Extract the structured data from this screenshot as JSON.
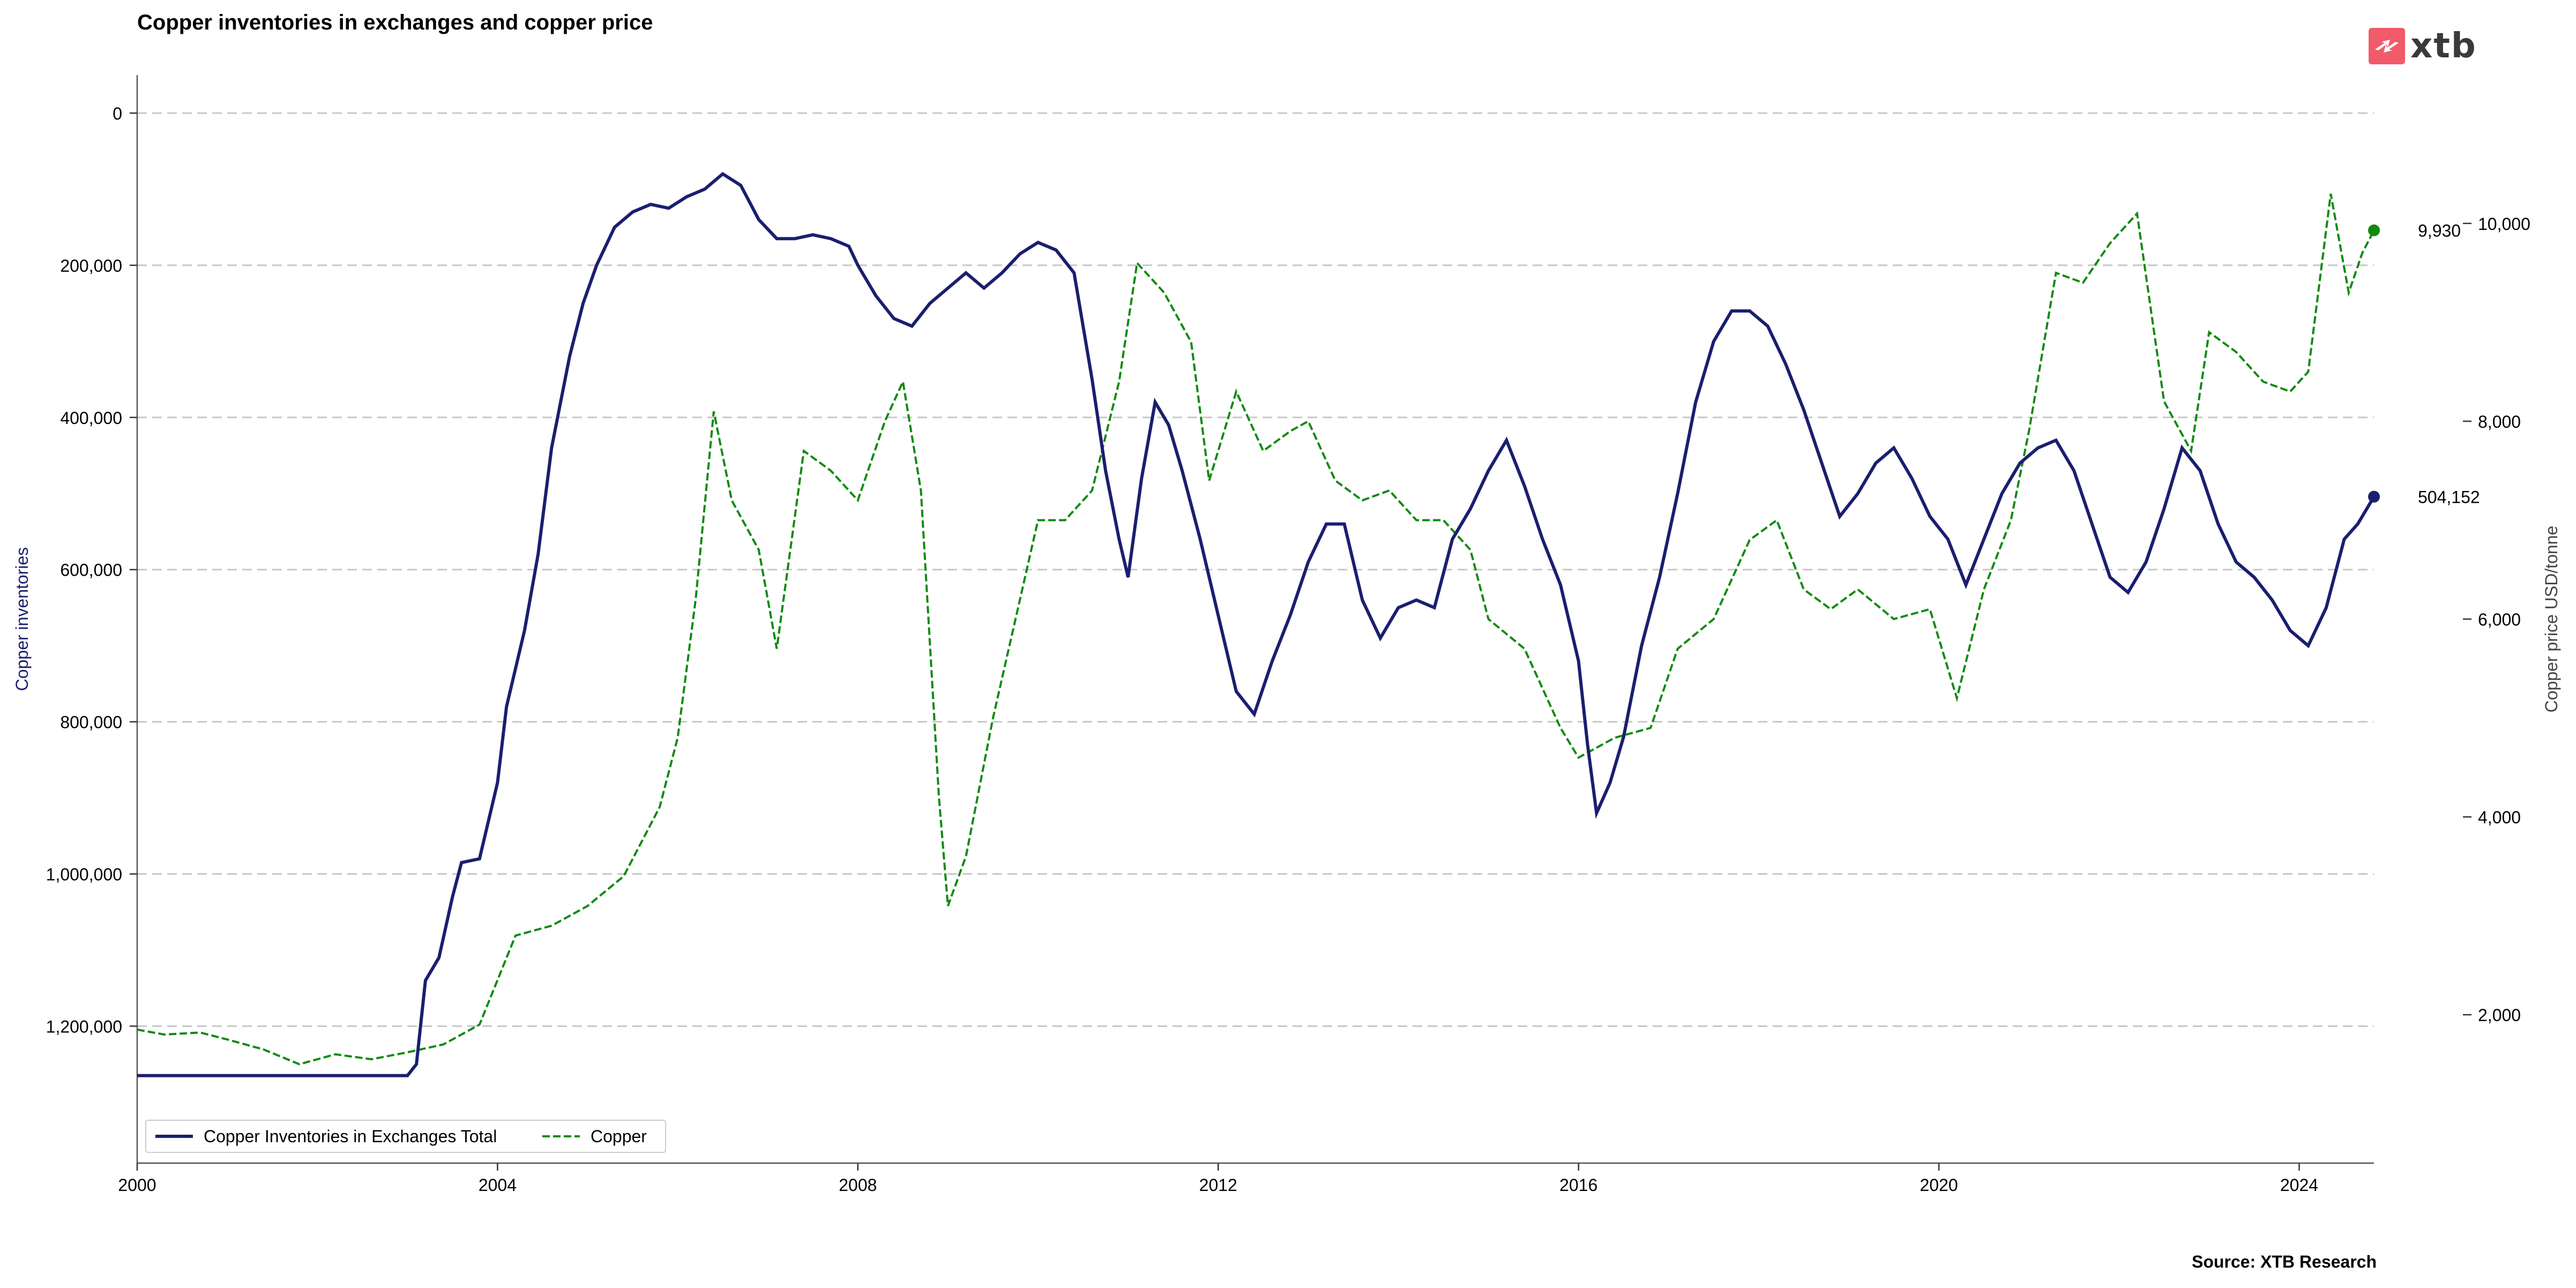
{
  "header": {
    "title": "Copper inventories in exchanges and copper price",
    "source": "Source: XTB Research",
    "logo_text": "xtb",
    "logo_icon": "xtb-logo-icon",
    "logo_color": "#f05a6a"
  },
  "chart_data": {
    "type": "line",
    "title": "Copper inventories in exchanges and copper price",
    "xlabel": "",
    "y_left_label": "Copper inventories",
    "y_right_label": "Copper price USD/tonne",
    "y_left_inverted": true,
    "y_left_range": [
      1380000,
      -50000
    ],
    "y_right_range": [
      500,
      11500
    ],
    "x_range": [
      2000.0,
      2024.83
    ],
    "x_ticks": [
      {
        "value": 2000,
        "label": "2000"
      },
      {
        "value": 2004,
        "label": "2004"
      },
      {
        "value": 2008,
        "label": "2008"
      },
      {
        "value": 2012,
        "label": "2012"
      },
      {
        "value": 2016,
        "label": "2016"
      },
      {
        "value": 2020,
        "label": "2020"
      },
      {
        "value": 2024,
        "label": "2024"
      }
    ],
    "y_left_ticks": [
      {
        "value": 0,
        "label": "0"
      },
      {
        "value": 200000,
        "label": "200,000"
      },
      {
        "value": 400000,
        "label": "400,000"
      },
      {
        "value": 600000,
        "label": "600,000"
      },
      {
        "value": 800000,
        "label": "800,000"
      },
      {
        "value": 1000000,
        "label": "1,000,000"
      },
      {
        "value": 1200000,
        "label": "1,200,000"
      }
    ],
    "y_right_ticks": [
      {
        "value": 2000,
        "label": "2,000"
      },
      {
        "value": 4000,
        "label": "4,000"
      },
      {
        "value": 6000,
        "label": "6,000"
      },
      {
        "value": 8000,
        "label": "8,000"
      },
      {
        "value": 10000,
        "label": "10,000"
      }
    ],
    "grid": "horizontal-dashed",
    "legend_position": "bottom-left",
    "series": [
      {
        "name": "Copper Inventories in Exchanges Total",
        "axis": "left",
        "color": "#1a1f6e",
        "style": "solid",
        "last_value_label": "504,152",
        "last_value": 504152,
        "points": [
          [
            2000.0,
            1265000
          ],
          [
            2003.0,
            1265000
          ],
          [
            2003.1,
            1250000
          ],
          [
            2003.2,
            1140000
          ],
          [
            2003.35,
            1110000
          ],
          [
            2003.5,
            1030000
          ],
          [
            2003.6,
            985000
          ],
          [
            2003.8,
            980000
          ],
          [
            2003.9,
            930000
          ],
          [
            2004.0,
            880000
          ],
          [
            2004.1,
            780000
          ],
          [
            2004.3,
            680000
          ],
          [
            2004.45,
            580000
          ],
          [
            2004.6,
            440000
          ],
          [
            2004.8,
            320000
          ],
          [
            2004.95,
            250000
          ],
          [
            2005.1,
            200000
          ],
          [
            2005.3,
            150000
          ],
          [
            2005.5,
            130000
          ],
          [
            2005.7,
            120000
          ],
          [
            2005.9,
            125000
          ],
          [
            2006.1,
            110000
          ],
          [
            2006.3,
            100000
          ],
          [
            2006.5,
            80000
          ],
          [
            2006.7,
            95000
          ],
          [
            2006.9,
            140000
          ],
          [
            2007.1,
            165000
          ],
          [
            2007.3,
            165000
          ],
          [
            2007.5,
            160000
          ],
          [
            2007.7,
            165000
          ],
          [
            2007.9,
            175000
          ],
          [
            2008.0,
            200000
          ],
          [
            2008.2,
            240000
          ],
          [
            2008.4,
            270000
          ],
          [
            2008.6,
            280000
          ],
          [
            2008.8,
            250000
          ],
          [
            2009.0,
            230000
          ],
          [
            2009.2,
            210000
          ],
          [
            2009.4,
            230000
          ],
          [
            2009.6,
            210000
          ],
          [
            2009.8,
            185000
          ],
          [
            2010.0,
            170000
          ],
          [
            2010.2,
            180000
          ],
          [
            2010.4,
            210000
          ],
          [
            2010.6,
            350000
          ],
          [
            2010.75,
            470000
          ],
          [
            2010.9,
            560000
          ],
          [
            2011.0,
            610000
          ],
          [
            2011.15,
            480000
          ],
          [
            2011.3,
            380000
          ],
          [
            2011.45,
            410000
          ],
          [
            2011.6,
            470000
          ],
          [
            2011.8,
            560000
          ],
          [
            2012.0,
            660000
          ],
          [
            2012.2,
            760000
          ],
          [
            2012.4,
            790000
          ],
          [
            2012.6,
            720000
          ],
          [
            2012.8,
            660000
          ],
          [
            2013.0,
            590000
          ],
          [
            2013.2,
            540000
          ],
          [
            2013.4,
            540000
          ],
          [
            2013.6,
            640000
          ],
          [
            2013.8,
            690000
          ],
          [
            2014.0,
            650000
          ],
          [
            2014.2,
            640000
          ],
          [
            2014.4,
            650000
          ],
          [
            2014.6,
            560000
          ],
          [
            2014.8,
            520000
          ],
          [
            2015.0,
            470000
          ],
          [
            2015.2,
            430000
          ],
          [
            2015.4,
            490000
          ],
          [
            2015.6,
            560000
          ],
          [
            2015.8,
            620000
          ],
          [
            2016.0,
            720000
          ],
          [
            2016.1,
            830000
          ],
          [
            2016.2,
            920000
          ],
          [
            2016.35,
            880000
          ],
          [
            2016.5,
            820000
          ],
          [
            2016.7,
            700000
          ],
          [
            2016.9,
            610000
          ],
          [
            2017.1,
            500000
          ],
          [
            2017.3,
            380000
          ],
          [
            2017.5,
            300000
          ],
          [
            2017.7,
            260000
          ],
          [
            2017.9,
            260000
          ],
          [
            2018.1,
            280000
          ],
          [
            2018.3,
            330000
          ],
          [
            2018.5,
            390000
          ],
          [
            2018.7,
            460000
          ],
          [
            2018.9,
            530000
          ],
          [
            2019.1,
            500000
          ],
          [
            2019.3,
            460000
          ],
          [
            2019.5,
            440000
          ],
          [
            2019.7,
            480000
          ],
          [
            2019.9,
            530000
          ],
          [
            2020.1,
            560000
          ],
          [
            2020.3,
            620000
          ],
          [
            2020.5,
            560000
          ],
          [
            2020.7,
            500000
          ],
          [
            2020.9,
            460000
          ],
          [
            2021.1,
            440000
          ],
          [
            2021.3,
            430000
          ],
          [
            2021.5,
            470000
          ],
          [
            2021.7,
            540000
          ],
          [
            2021.9,
            610000
          ],
          [
            2022.1,
            630000
          ],
          [
            2022.3,
            590000
          ],
          [
            2022.5,
            520000
          ],
          [
            2022.7,
            440000
          ],
          [
            2022.9,
            470000
          ],
          [
            2023.1,
            540000
          ],
          [
            2023.3,
            590000
          ],
          [
            2023.5,
            610000
          ],
          [
            2023.7,
            640000
          ],
          [
            2023.9,
            680000
          ],
          [
            2024.1,
            700000
          ],
          [
            2024.3,
            650000
          ],
          [
            2024.5,
            560000
          ],
          [
            2024.65,
            540000
          ],
          [
            2024.83,
            504152
          ]
        ]
      },
      {
        "name": "Copper",
        "axis": "right",
        "color": "#0f8a0f",
        "style": "dashed",
        "last_value_label": "9,930",
        "last_value": 9930,
        "points": [
          [
            2000.0,
            1850
          ],
          [
            2000.3,
            1800
          ],
          [
            2000.7,
            1820
          ],
          [
            2001.0,
            1750
          ],
          [
            2001.4,
            1650
          ],
          [
            2001.8,
            1500
          ],
          [
            2002.2,
            1600
          ],
          [
            2002.6,
            1550
          ],
          [
            2003.0,
            1620
          ],
          [
            2003.4,
            1700
          ],
          [
            2003.8,
            1900
          ],
          [
            2004.2,
            2800
          ],
          [
            2004.6,
            2900
          ],
          [
            2005.0,
            3100
          ],
          [
            2005.4,
            3400
          ],
          [
            2005.8,
            4100
          ],
          [
            2006.0,
            4800
          ],
          [
            2006.2,
            6200
          ],
          [
            2006.4,
            8100
          ],
          [
            2006.6,
            7200
          ],
          [
            2006.9,
            6700
          ],
          [
            2007.1,
            5700
          ],
          [
            2007.4,
            7700
          ],
          [
            2007.7,
            7500
          ],
          [
            2008.0,
            7200
          ],
          [
            2008.3,
            8000
          ],
          [
            2008.5,
            8400
          ],
          [
            2008.7,
            7300
          ],
          [
            2008.9,
            4200
          ],
          [
            2009.0,
            3100
          ],
          [
            2009.2,
            3600
          ],
          [
            2009.5,
            5000
          ],
          [
            2009.8,
            6200
          ],
          [
            2010.0,
            7000
          ],
          [
            2010.3,
            7000
          ],
          [
            2010.6,
            7300
          ],
          [
            2010.9,
            8400
          ],
          [
            2011.1,
            9600
          ],
          [
            2011.4,
            9300
          ],
          [
            2011.7,
            8800
          ],
          [
            2011.9,
            7400
          ],
          [
            2012.2,
            8300
          ],
          [
            2012.5,
            7700
          ],
          [
            2012.8,
            7900
          ],
          [
            2013.0,
            8000
          ],
          [
            2013.3,
            7400
          ],
          [
            2013.6,
            7200
          ],
          [
            2013.9,
            7300
          ],
          [
            2014.2,
            7000
          ],
          [
            2014.5,
            7000
          ],
          [
            2014.8,
            6700
          ],
          [
            2015.0,
            6000
          ],
          [
            2015.4,
            5700
          ],
          [
            2015.8,
            4900
          ],
          [
            2016.0,
            4600
          ],
          [
            2016.4,
            4800
          ],
          [
            2016.8,
            4900
          ],
          [
            2017.1,
            5700
          ],
          [
            2017.5,
            6000
          ],
          [
            2017.9,
            6800
          ],
          [
            2018.2,
            7000
          ],
          [
            2018.5,
            6300
          ],
          [
            2018.8,
            6100
          ],
          [
            2019.1,
            6300
          ],
          [
            2019.5,
            6000
          ],
          [
            2019.9,
            6100
          ],
          [
            2020.2,
            5200
          ],
          [
            2020.5,
            6300
          ],
          [
            2020.8,
            7000
          ],
          [
            2021.0,
            7900
          ],
          [
            2021.3,
            9500
          ],
          [
            2021.6,
            9400
          ],
          [
            2021.9,
            9800
          ],
          [
            2022.2,
            10100
          ],
          [
            2022.5,
            8200
          ],
          [
            2022.8,
            7700
          ],
          [
            2023.0,
            8900
          ],
          [
            2023.3,
            8700
          ],
          [
            2023.6,
            8400
          ],
          [
            2023.9,
            8300
          ],
          [
            2024.1,
            8500
          ],
          [
            2024.35,
            10300
          ],
          [
            2024.55,
            9300
          ],
          [
            2024.7,
            9700
          ],
          [
            2024.83,
            9930
          ]
        ]
      }
    ]
  }
}
